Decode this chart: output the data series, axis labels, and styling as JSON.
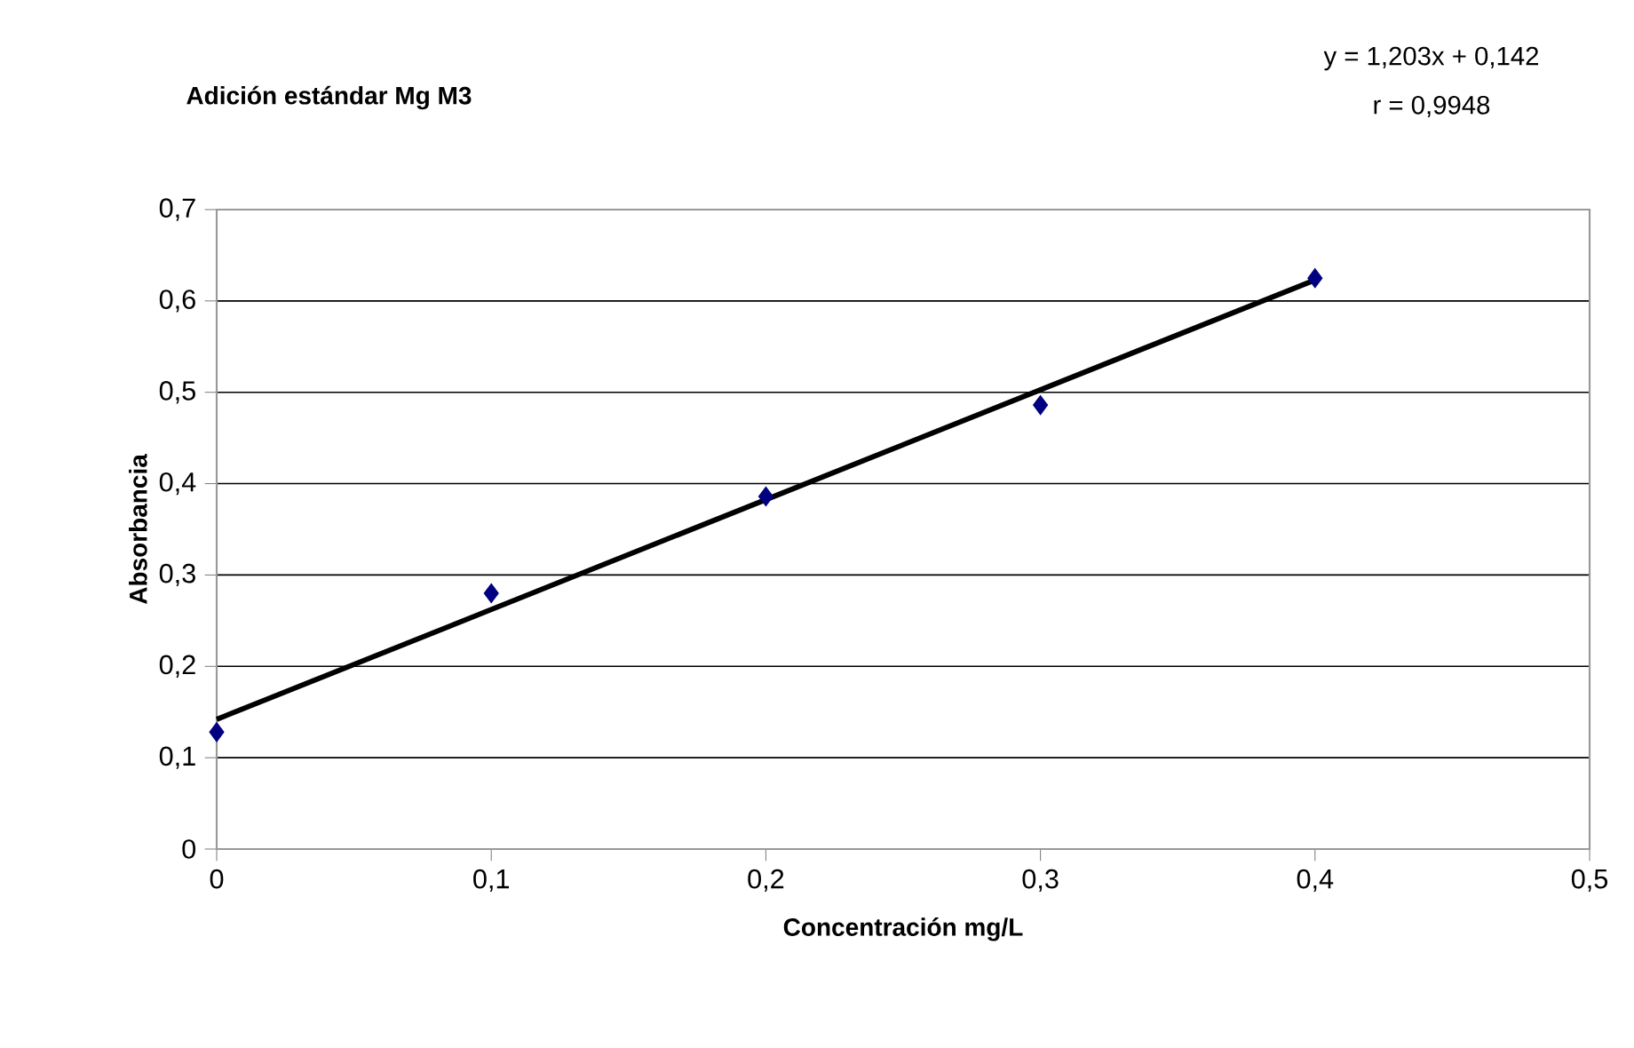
{
  "chart_data": {
    "type": "scatter",
    "title": "Adición estándar Mg M3",
    "xlabel": "Concentración mg/L",
    "ylabel": "Absorbancia",
    "x": [
      0,
      0.1,
      0.2,
      0.3,
      0.4
    ],
    "series": [
      {
        "type": "scatter",
        "color": "#000080",
        "marker": "diamond",
        "values": [
          0.128,
          0.28,
          0.386,
          0.486,
          0.625
        ]
      },
      {
        "type": "line",
        "color": "#000000",
        "marker": "none",
        "line_style": "solid",
        "x": [
          0,
          0.4
        ],
        "values": [
          0.142,
          0.623
        ]
      }
    ],
    "annotations": [
      "y = 1,203x + 0,142",
      "r  = 0,9948"
    ],
    "xlim": [
      0,
      0.5
    ],
    "ylim": [
      0,
      0.7
    ],
    "xticks": [
      0,
      {
        "value": 0.1,
        "label": "0,1"
      },
      {
        "value": 0.2,
        "label": "0,2"
      },
      {
        "value": 0.3,
        "label": "0,3"
      },
      {
        "value": 0.4,
        "label": "0,4"
      },
      {
        "value": 0.5,
        "label": "0,5"
      }
    ],
    "yticks": [
      0,
      {
        "value": 0.1,
        "label": "0,1"
      },
      {
        "value": 0.2,
        "label": "0,2"
      },
      {
        "value": 0.3,
        "label": "0,3"
      },
      {
        "value": 0.4,
        "label": "0,4"
      },
      {
        "value": 0.5,
        "label": "0,5"
      },
      {
        "value": 0.6,
        "label": "0,6"
      },
      {
        "value": 0.7,
        "label": "0,7"
      }
    ],
    "grid": "y"
  }
}
